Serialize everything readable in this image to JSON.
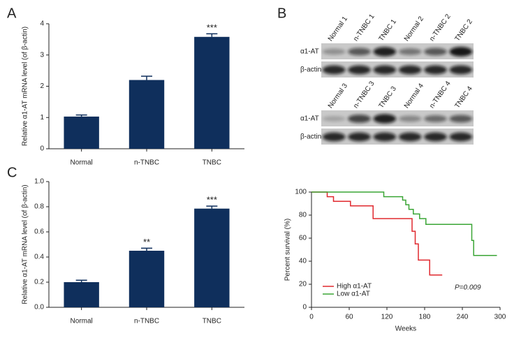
{
  "chart_data": [
    {
      "type": "bar",
      "panel": "A",
      "ylabel": "Relative α1-AT mRNA level (of β-actin)",
      "categories": [
        "Normal",
        "n-TNBC",
        "TNBC"
      ],
      "values": [
        1.03,
        2.2,
        3.58
      ],
      "errors": [
        0.05,
        0.12,
        0.1
      ],
      "value_annotations": [
        null,
        null,
        "***"
      ],
      "color": "#0f2f5c",
      "ylim": [
        0,
        4
      ],
      "yticks": [
        0,
        1,
        2,
        3,
        4
      ]
    },
    {
      "type": "bar",
      "panel": "C",
      "ylabel": "Relative α1-AT mRNA level (of β-actin)",
      "categories": [
        "Normal",
        "n-TNBC",
        "TNBC"
      ],
      "values": [
        0.2,
        0.45,
        0.785
      ],
      "errors": [
        0.015,
        0.02,
        0.02
      ],
      "value_annotations": [
        null,
        "**",
        "***"
      ],
      "color": "#0f2f5c",
      "ylim": [
        0,
        1
      ],
      "yticks": [
        {
          "value": 0,
          "label": "0.0"
        },
        0.2,
        0.4,
        0.6,
        0.8,
        {
          "value": 1,
          "label": "1.0"
        }
      ]
    },
    {
      "type": "line",
      "xlabel": "Weeks",
      "ylabel": "Percent survival (%)",
      "series": [
        {
          "name": "High α1-AT",
          "color": "#e0282e",
          "x": [
            0,
            25,
            35,
            62,
            98,
            160,
            165,
            170,
            188,
            208
          ],
          "values": [
            100,
            96,
            92,
            88,
            77,
            66,
            55,
            41,
            28,
            28
          ]
        },
        {
          "name": "Low α1-AT",
          "color": "#3aa535",
          "x": [
            0,
            115,
            145,
            150,
            155,
            162,
            172,
            182,
            255,
            258,
            295
          ],
          "values": [
            100,
            96,
            93,
            89,
            85,
            81,
            77,
            72,
            58,
            45,
            45
          ]
        }
      ],
      "annotation": "P=0.009",
      "xlim": [
        0,
        300
      ],
      "xticks": [
        0,
        60,
        120,
        180,
        240,
        300
      ],
      "ylim": [
        0,
        100
      ],
      "yticks": [
        0,
        20,
        40,
        60,
        80,
        100
      ],
      "legend": "lower left"
    }
  ],
  "blot": {
    "panel": "B",
    "rows": [
      "α1-AT",
      "β-actin"
    ],
    "groups": [
      {
        "lanes": [
          "Normal 1",
          "n-TNBC 1",
          "TNBC 1",
          "Normal 2",
          "n-TNBC 2",
          "TNBC 2"
        ]
      },
      {
        "lanes": [
          "Normal 3",
          "n-TNBC 3",
          "TNBC 3",
          "Normal 4",
          "n-TNBC 4",
          "TNBC 4"
        ]
      }
    ]
  }
}
